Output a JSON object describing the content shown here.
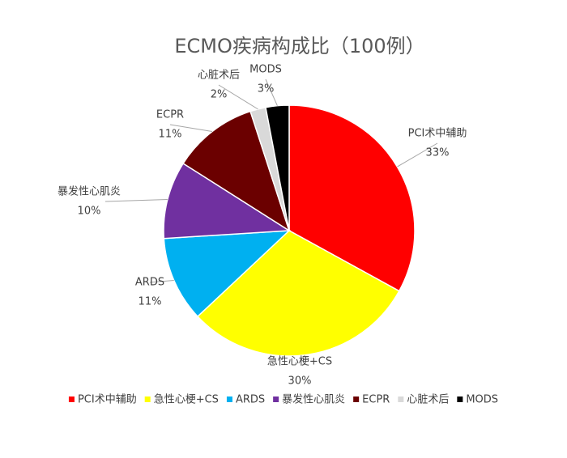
{
  "chart_data": {
    "type": "pie",
    "title": "ECMO疾病构成比（100例）",
    "categories": [
      "PCI术中辅助",
      "急性心梗+CS",
      "ARDS",
      "暴发性心肌炎",
      "ECPR",
      "心脏术后",
      "MODS"
    ],
    "values": [
      33,
      30,
      11,
      10,
      11,
      2,
      3
    ],
    "value_labels": [
      "33%",
      "30%",
      "11%",
      "10%",
      "11%",
      "2%",
      "3%"
    ],
    "colors": [
      "#ff0000",
      "#ffff00",
      "#00b0f0",
      "#7030a0",
      "#6b0000",
      "#d9d9d9",
      "#000000"
    ],
    "legend": "bottom"
  }
}
